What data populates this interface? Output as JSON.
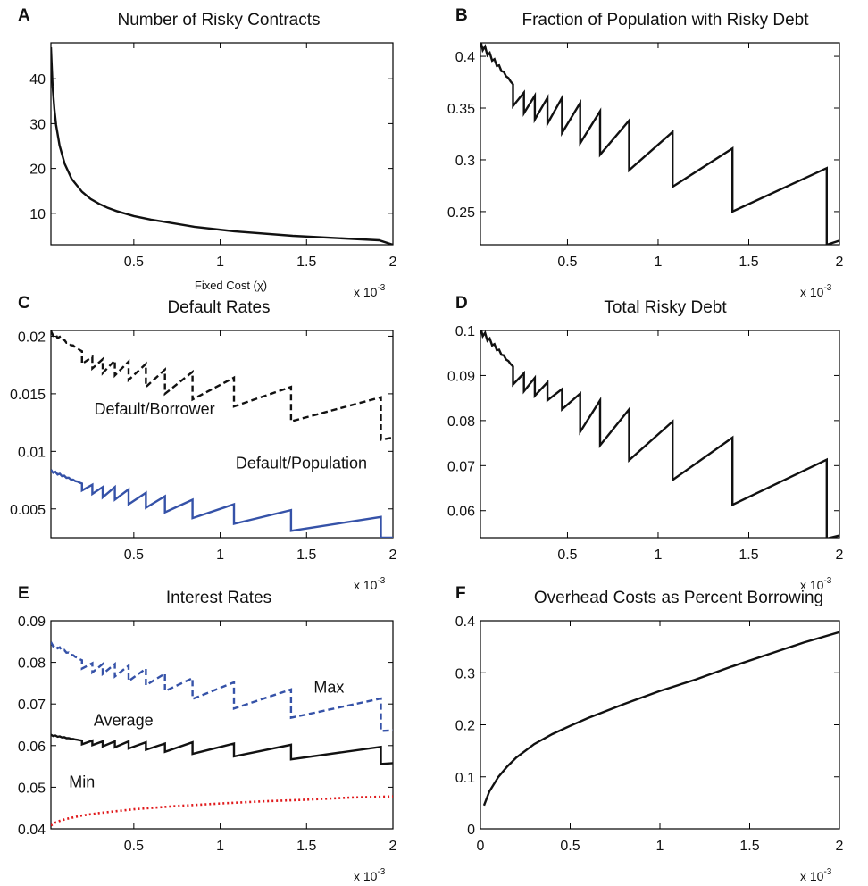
{
  "colors": {
    "black": "#111111",
    "blue": "#3552a8",
    "red": "#e0191b",
    "axis": "#000000"
  },
  "chart_data": [
    {
      "id": "A",
      "type": "line",
      "panel_letter": "A",
      "title": "Number of Risky Contracts",
      "xlabel": "Fixed Cost (χ)",
      "x_multiplier": "x 10",
      "x_multiplier_exp": "-3",
      "xlim": [
        0.02,
        2.0
      ],
      "ylim": [
        3,
        48
      ],
      "xticks": [
        0.5,
        1,
        1.5,
        2
      ],
      "xtick_labels": [
        "0.5",
        "1",
        "1.5",
        "2"
      ],
      "yticks": [
        10,
        20,
        30,
        40
      ],
      "ytick_labels": [
        "10",
        "20",
        "30",
        "40"
      ],
      "series": [
        {
          "style": "solid",
          "color": "black",
          "x": [
            0.02,
            0.03,
            0.04,
            0.05,
            0.07,
            0.1,
            0.14,
            0.2,
            0.25,
            0.3,
            0.35,
            0.4,
            0.5,
            0.6,
            0.68,
            0.85,
            1.08,
            1.42,
            1.92,
            2.0
          ],
          "y": [
            47,
            38.3,
            33.2,
            29.7,
            25.1,
            21.0,
            17.7,
            14.8,
            13.2,
            12.1,
            11.2,
            10.5,
            9.4,
            8.6,
            8.1,
            7,
            6,
            5,
            4,
            3
          ]
        }
      ]
    },
    {
      "id": "B",
      "type": "line",
      "panel_letter": "B",
      "title": "Fraction of Population with Risky Debt",
      "x_multiplier": "x 10",
      "x_multiplier_exp": "-3",
      "xlim": [
        0.02,
        2.0
      ],
      "ylim": [
        0.218,
        0.413
      ],
      "xticks": [
        0.5,
        1,
        1.5,
        2
      ],
      "xtick_labels": [
        "0.5",
        "1",
        "1.5",
        "2"
      ],
      "yticks": [
        0.25,
        0.3,
        0.35,
        0.4
      ],
      "ytick_labels": [
        "0.25",
        "0.3",
        "0.35",
        "0.4"
      ],
      "series": [
        {
          "style": "solid",
          "color": "black",
          "shape": "sawtooth",
          "x": [
            0.02,
            0.2,
            0.2,
            0.26,
            0.26,
            0.32,
            0.32,
            0.39,
            0.39,
            0.47,
            0.47,
            0.57,
            0.57,
            0.68,
            0.68,
            0.84,
            0.84,
            1.08,
            1.08,
            1.41,
            1.41,
            1.93,
            1.93,
            2.0
          ],
          "y": [
            0.412,
            0.373,
            0.352,
            0.365,
            0.345,
            0.362,
            0.339,
            0.36,
            0.335,
            0.36,
            0.326,
            0.355,
            0.316,
            0.347,
            0.305,
            0.338,
            0.29,
            0.327,
            0.274,
            0.311,
            0.25,
            0.292,
            0.218,
            0.222
          ]
        }
      ]
    },
    {
      "id": "C",
      "type": "line",
      "panel_letter": "C",
      "title": "Default Rates",
      "x_multiplier": "x 10",
      "x_multiplier_exp": "-3",
      "xlim": [
        0.02,
        2.0
      ],
      "ylim": [
        0.0025,
        0.0205
      ],
      "xticks": [
        0.5,
        1,
        1.5,
        2
      ],
      "xtick_labels": [
        "0.5",
        "1",
        "1.5",
        "2"
      ],
      "yticks": [
        0.005,
        0.01,
        0.015,
        0.02
      ],
      "ytick_labels": [
        "0.005",
        "0.01",
        "0.015",
        "0.02"
      ],
      "annotations": [
        {
          "text": "Default/Borrower",
          "x": 0.62,
          "y": 0.0132
        },
        {
          "text": "Default/Population",
          "x": 1.47,
          "y": 0.0085
        }
      ],
      "series": [
        {
          "name": "Default/Borrower",
          "style": "dashed",
          "color": "black",
          "shape": "sawtooth",
          "x": [
            0.02,
            0.2,
            0.2,
            0.26,
            0.26,
            0.32,
            0.32,
            0.39,
            0.39,
            0.47,
            0.47,
            0.57,
            0.57,
            0.68,
            0.68,
            0.84,
            0.84,
            1.08,
            1.08,
            1.41,
            1.41,
            1.93,
            1.93,
            2.0
          ],
          "y": [
            0.0203,
            0.0187,
            0.0176,
            0.0182,
            0.0172,
            0.018,
            0.0168,
            0.0179,
            0.0166,
            0.0178,
            0.0162,
            0.0176,
            0.0156,
            0.0171,
            0.015,
            0.0169,
            0.0145,
            0.0164,
            0.0139,
            0.0156,
            0.0126,
            0.0147,
            0.011,
            0.0112
          ]
        },
        {
          "name": "Default/Population",
          "style": "solid",
          "color": "blue",
          "shape": "sawtooth",
          "x": [
            0.02,
            0.2,
            0.2,
            0.26,
            0.26,
            0.32,
            0.32,
            0.39,
            0.39,
            0.47,
            0.47,
            0.57,
            0.57,
            0.68,
            0.68,
            0.84,
            0.84,
            1.08,
            1.08,
            1.41,
            1.41,
            1.93,
            1.93,
            2.0
          ],
          "y": [
            0.0083,
            0.0072,
            0.0066,
            0.0071,
            0.0063,
            0.0069,
            0.006,
            0.0069,
            0.0058,
            0.0067,
            0.0054,
            0.0064,
            0.0051,
            0.0061,
            0.0047,
            0.0058,
            0.0042,
            0.0054,
            0.0037,
            0.0049,
            0.0031,
            0.0043,
            0.0025,
            0.0025
          ]
        }
      ]
    },
    {
      "id": "D",
      "type": "line",
      "panel_letter": "D",
      "title": "Total Risky Debt",
      "x_multiplier": "x 10",
      "x_multiplier_exp": "-3",
      "xlim": [
        0.02,
        2.0
      ],
      "ylim": [
        0.054,
        0.1
      ],
      "xticks": [
        0.5,
        1,
        1.5,
        2
      ],
      "xtick_labels": [
        "0.5",
        "1",
        "1.5",
        "2"
      ],
      "yticks": [
        0.06,
        0.07,
        0.08,
        0.09,
        0.1
      ],
      "ytick_labels": [
        "0.06",
        "0.07",
        "0.08",
        "0.09",
        "0.1"
      ],
      "series": [
        {
          "style": "solid",
          "color": "black",
          "shape": "sawtooth",
          "x": [
            0.02,
            0.2,
            0.2,
            0.26,
            0.26,
            0.32,
            0.32,
            0.39,
            0.39,
            0.47,
            0.47,
            0.57,
            0.57,
            0.68,
            0.68,
            0.84,
            0.84,
            1.08,
            1.08,
            1.41,
            1.41,
            1.93,
            1.93,
            2.0
          ],
          "y": [
            0.1,
            0.092,
            0.088,
            0.0905,
            0.0865,
            0.0895,
            0.0855,
            0.0885,
            0.0845,
            0.087,
            0.0825,
            0.086,
            0.0775,
            0.0845,
            0.0745,
            0.0825,
            0.0712,
            0.0798,
            0.0668,
            0.0762,
            0.0613,
            0.0713,
            0.0538,
            0.0545
          ]
        }
      ]
    },
    {
      "id": "E",
      "type": "line",
      "panel_letter": "E",
      "title": "Interest Rates",
      "x_multiplier": "x 10",
      "x_multiplier_exp": "-3",
      "xlim": [
        0.02,
        2.0
      ],
      "ylim": [
        0.04,
        0.09
      ],
      "xticks": [
        0.5,
        1,
        1.5,
        2
      ],
      "xtick_labels": [
        "0.5",
        "1",
        "1.5",
        "2"
      ],
      "yticks": [
        0.04,
        0.05,
        0.06,
        0.07,
        0.08,
        0.09
      ],
      "ytick_labels": [
        "0.04",
        "0.05",
        "0.06",
        "0.07",
        "0.08",
        "0.09"
      ],
      "annotations": [
        {
          "text": "Max",
          "x": 1.63,
          "y": 0.0727
        },
        {
          "text": "Average",
          "x": 0.44,
          "y": 0.0648
        },
        {
          "text": "Min",
          "x": 0.2,
          "y": 0.05
        }
      ],
      "series": [
        {
          "name": "Max",
          "style": "dashed",
          "color": "blue",
          "shape": "sawtooth",
          "x": [
            0.02,
            0.2,
            0.2,
            0.26,
            0.26,
            0.32,
            0.32,
            0.39,
            0.39,
            0.47,
            0.47,
            0.57,
            0.57,
            0.68,
            0.68,
            0.84,
            0.84,
            1.08,
            1.08,
            1.41,
            1.41,
            1.93,
            1.93,
            2.0
          ],
          "y": [
            0.0845,
            0.0805,
            0.0785,
            0.0798,
            0.0776,
            0.0796,
            0.0772,
            0.0796,
            0.0766,
            0.0792,
            0.0755,
            0.0785,
            0.0745,
            0.0773,
            0.0731,
            0.0762,
            0.0712,
            0.0752,
            0.0689,
            0.0735,
            0.0667,
            0.0713,
            0.0635,
            0.0637
          ]
        },
        {
          "name": "Average",
          "style": "solid",
          "color": "black",
          "shape": "sawtooth",
          "x": [
            0.02,
            0.2,
            0.2,
            0.26,
            0.26,
            0.32,
            0.32,
            0.39,
            0.39,
            0.47,
            0.47,
            0.57,
            0.57,
            0.68,
            0.68,
            0.84,
            0.84,
            1.08,
            1.08,
            1.41,
            1.41,
            1.93,
            1.93,
            2.0
          ],
          "y": [
            0.0625,
            0.0612,
            0.0603,
            0.0612,
            0.0601,
            0.061,
            0.0598,
            0.061,
            0.0596,
            0.061,
            0.0593,
            0.0608,
            0.059,
            0.0605,
            0.0585,
            0.0608,
            0.058,
            0.0605,
            0.0574,
            0.0602,
            0.0567,
            0.0597,
            0.0556,
            0.0558
          ]
        },
        {
          "name": "Min",
          "style": "dotted",
          "color": "red",
          "x": [
            0.02,
            0.05,
            0.1,
            0.2,
            0.3,
            0.5,
            0.75,
            1.0,
            1.25,
            1.5,
            1.75,
            2.0
          ],
          "y": [
            0.0408,
            0.0416,
            0.0423,
            0.0432,
            0.0438,
            0.0447,
            0.0455,
            0.0461,
            0.0466,
            0.047,
            0.0475,
            0.0478
          ]
        }
      ]
    },
    {
      "id": "F",
      "type": "line",
      "panel_letter": "F",
      "title": "Overhead Costs as Percent Borrowing",
      "x_multiplier": "x 10",
      "x_multiplier_exp": "-3",
      "xlim": [
        0.0,
        2.0
      ],
      "ylim": [
        0.0,
        0.4
      ],
      "xticks": [
        0,
        0.5,
        1,
        1.5,
        2
      ],
      "xtick_labels": [
        "0",
        "0.5",
        "1",
        "1.5",
        "2"
      ],
      "yticks": [
        0,
        0.1,
        0.2,
        0.3,
        0.4
      ],
      "ytick_labels": [
        "0",
        "0.1",
        "0.2",
        "0.3",
        "0.4"
      ],
      "series": [
        {
          "style": "solid",
          "color": "black",
          "x": [
            0.02,
            0.05,
            0.1,
            0.15,
            0.2,
            0.3,
            0.4,
            0.5,
            0.6,
            0.8,
            1.0,
            1.2,
            1.4,
            1.6,
            1.8,
            2.0
          ],
          "y": [
            0.045,
            0.072,
            0.1,
            0.12,
            0.137,
            0.163,
            0.182,
            0.198,
            0.213,
            0.24,
            0.265,
            0.287,
            0.312,
            0.335,
            0.358,
            0.378
          ]
        }
      ]
    }
  ]
}
